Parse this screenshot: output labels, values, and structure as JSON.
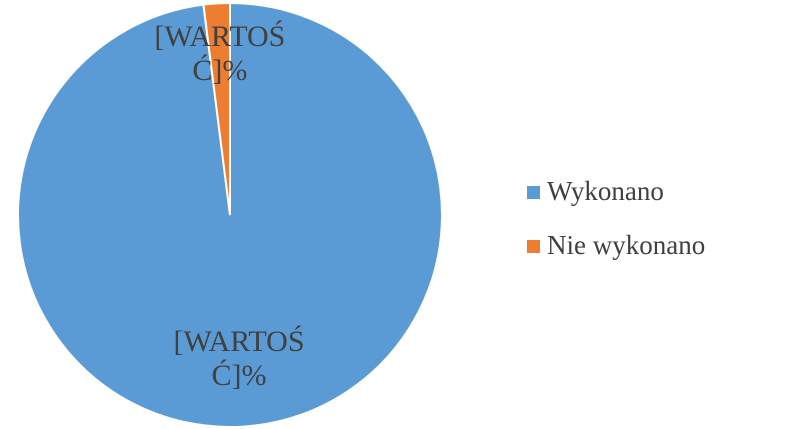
{
  "chart_data": {
    "type": "pie",
    "categories": [
      "Wykonano",
      "Nie wykonano"
    ],
    "values": [
      98,
      2
    ],
    "value_labels": [
      "[WARTOŚĆ]%",
      "[WARTOŚĆ]%"
    ],
    "colors": [
      "#5b9bd5",
      "#ed7d31"
    ],
    "legend": "right"
  }
}
